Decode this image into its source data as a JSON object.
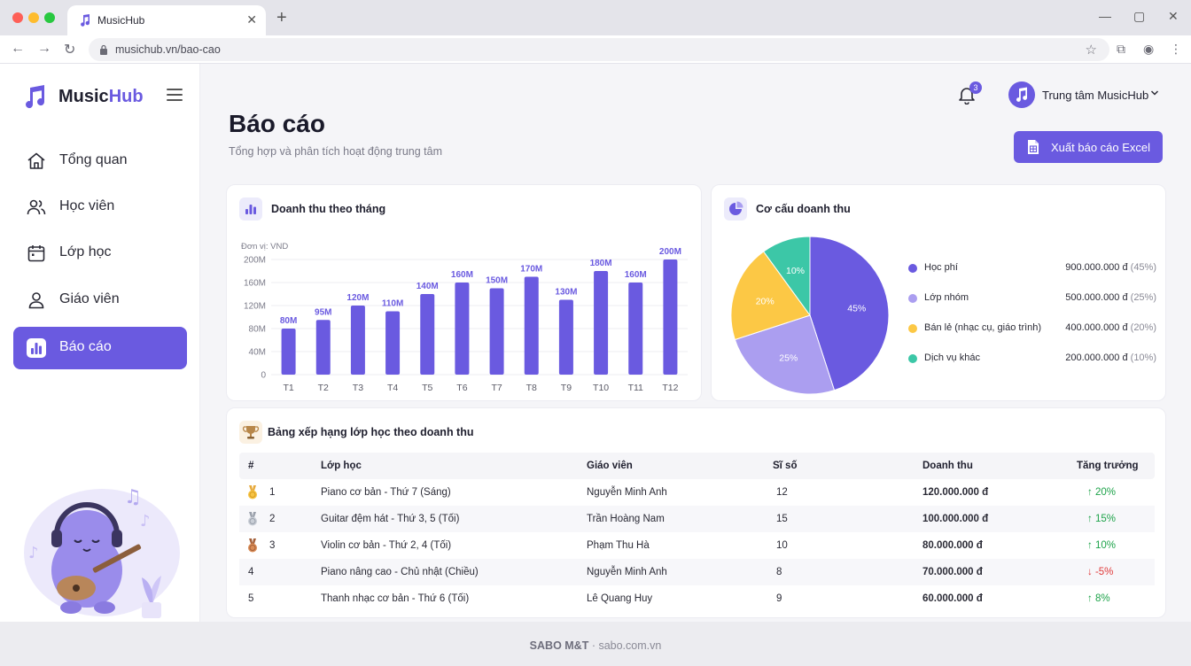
{
  "browser": {
    "tab_title": "MusicHub",
    "url": "musichub.vn/bao-cao"
  },
  "sidebar": {
    "logo_prefix": "Music",
    "logo_suffix": "Hub",
    "items": [
      {
        "label": "Tổng quan",
        "icon": "home-icon",
        "active": false
      },
      {
        "label": "Học viên",
        "icon": "users-icon",
        "active": false
      },
      {
        "label": "Lớp học",
        "icon": "calendar-icon",
        "active": false
      },
      {
        "label": "Giáo viên",
        "icon": "user-icon",
        "active": false
      },
      {
        "label": "Báo cáo",
        "icon": "chart-icon",
        "active": true
      }
    ]
  },
  "header": {
    "notification_count": "3",
    "user_name": "Trung tâm MusicHub"
  },
  "page": {
    "title": "Báo cáo",
    "subtitle": "Tổng hợp và phân tích hoạt động trung tâm",
    "export_label": "Xuất báo cáo Excel"
  },
  "revenue_card": {
    "title": "Doanh thu theo tháng"
  },
  "structure_card": {
    "title": "Cơ cấu doanh thu"
  },
  "chart_data": [
    {
      "type": "bar",
      "unit_label": "Đơn vị: VND",
      "categories": [
        "T1",
        "T2",
        "T3",
        "T4",
        "T5",
        "T6",
        "T7",
        "T8",
        "T9",
        "T10",
        "T11",
        "T12"
      ],
      "values": [
        80,
        95,
        120,
        110,
        140,
        160,
        150,
        170,
        130,
        180,
        160,
        200
      ],
      "data_labels": [
        "80M",
        "95M",
        "120M",
        "110M",
        "140M",
        "160M",
        "150M",
        "170M",
        "130M",
        "180M",
        "160M",
        "200M"
      ],
      "yticks": [
        "0",
        "40M",
        "80M",
        "120M",
        "160M",
        "200M"
      ],
      "ylim": [
        0,
        200
      ],
      "color": "#6a5ae0",
      "grid": true
    },
    {
      "type": "pie",
      "slices": [
        {
          "label": "Học phí",
          "value": 45,
          "pct_label": "45%",
          "amount": "900.000.000 đ",
          "pct": "(45%)",
          "color": "#6a5ae0"
        },
        {
          "label": "Lớp nhóm",
          "value": 25,
          "pct_label": "25%",
          "amount": "500.000.000 đ",
          "pct": "(25%)",
          "color": "#ab9ef0"
        },
        {
          "label": "Bán lẻ (nhạc cụ, giáo trình)",
          "value": 20,
          "pct_label": "20%",
          "amount": "400.000.000 đ",
          "pct": "(20%)",
          "color": "#fcc845"
        },
        {
          "label": "Dịch vụ khác",
          "value": 10,
          "pct_label": "10%",
          "amount": "200.000.000 đ",
          "pct": "(10%)",
          "color": "#3cc7a7"
        }
      ],
      "legend_position": "right"
    }
  ],
  "ranking": {
    "title": "Bảng xếp hạng lớp học theo doanh thu",
    "columns": [
      "#",
      "Lớp học",
      "Giáo viên",
      "Sĩ số",
      "Doanh thu",
      "Tăng trưởng"
    ],
    "rows": [
      {
        "rank": "1",
        "medal": "gold",
        "class": "Piano cơ bản - Thứ 7 (Sáng)",
        "teacher": "Nguyễn Minh Anh",
        "size": "12",
        "revenue": "120.000.000 đ",
        "growth": "↑ 20%",
        "trend": "up"
      },
      {
        "rank": "2",
        "medal": "silver",
        "class": "Guitar đệm hát - Thứ 3, 5 (Tối)",
        "teacher": "Trần Hoàng Nam",
        "size": "15",
        "revenue": "100.000.000 đ",
        "growth": "↑ 15%",
        "trend": "up"
      },
      {
        "rank": "3",
        "medal": "bronze",
        "class": "Violin cơ bản - Thứ 2, 4 (Tối)",
        "teacher": "Phạm Thu Hà",
        "size": "10",
        "revenue": "80.000.000 đ",
        "growth": "↑ 10%",
        "trend": "up"
      },
      {
        "rank": "4",
        "medal": "",
        "class": "Piano nâng cao - Chủ nhật (Chiều)",
        "teacher": "Nguyễn Minh Anh",
        "size": "8",
        "revenue": "70.000.000 đ",
        "growth": "↓ -5%",
        "trend": "down"
      },
      {
        "rank": "5",
        "medal": "",
        "class": "Thanh nhạc cơ bản - Thứ 6 (Tối)",
        "teacher": "Lê Quang Huy",
        "size": "9",
        "revenue": "60.000.000 đ",
        "growth": "↑ 8%",
        "trend": "up"
      }
    ]
  },
  "footer": {
    "brand": "SABO M&T",
    "separator": " · ",
    "site": "sabo.com.vn"
  }
}
